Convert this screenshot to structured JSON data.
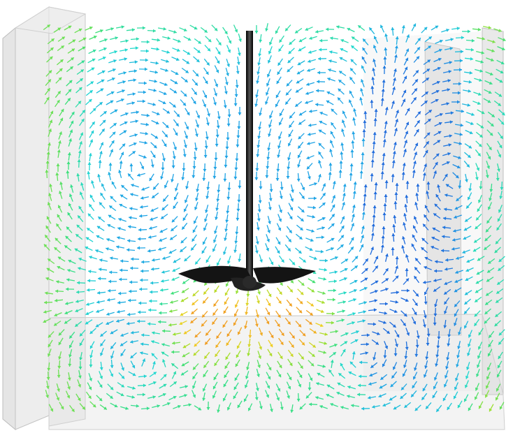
{
  "figure": {
    "kind": "CFD velocity vector field in a stirred tank (side view)",
    "colormap": [
      "#1f4fd6",
      "#1ea0e6",
      "#20d8d0",
      "#3ee07a",
      "#9be030",
      "#f0d020",
      "#f08020",
      "#e81818"
    ],
    "impeller_color": "#111111",
    "tank_wall_color": "#d9d9d9",
    "background": "#ffffff"
  }
}
